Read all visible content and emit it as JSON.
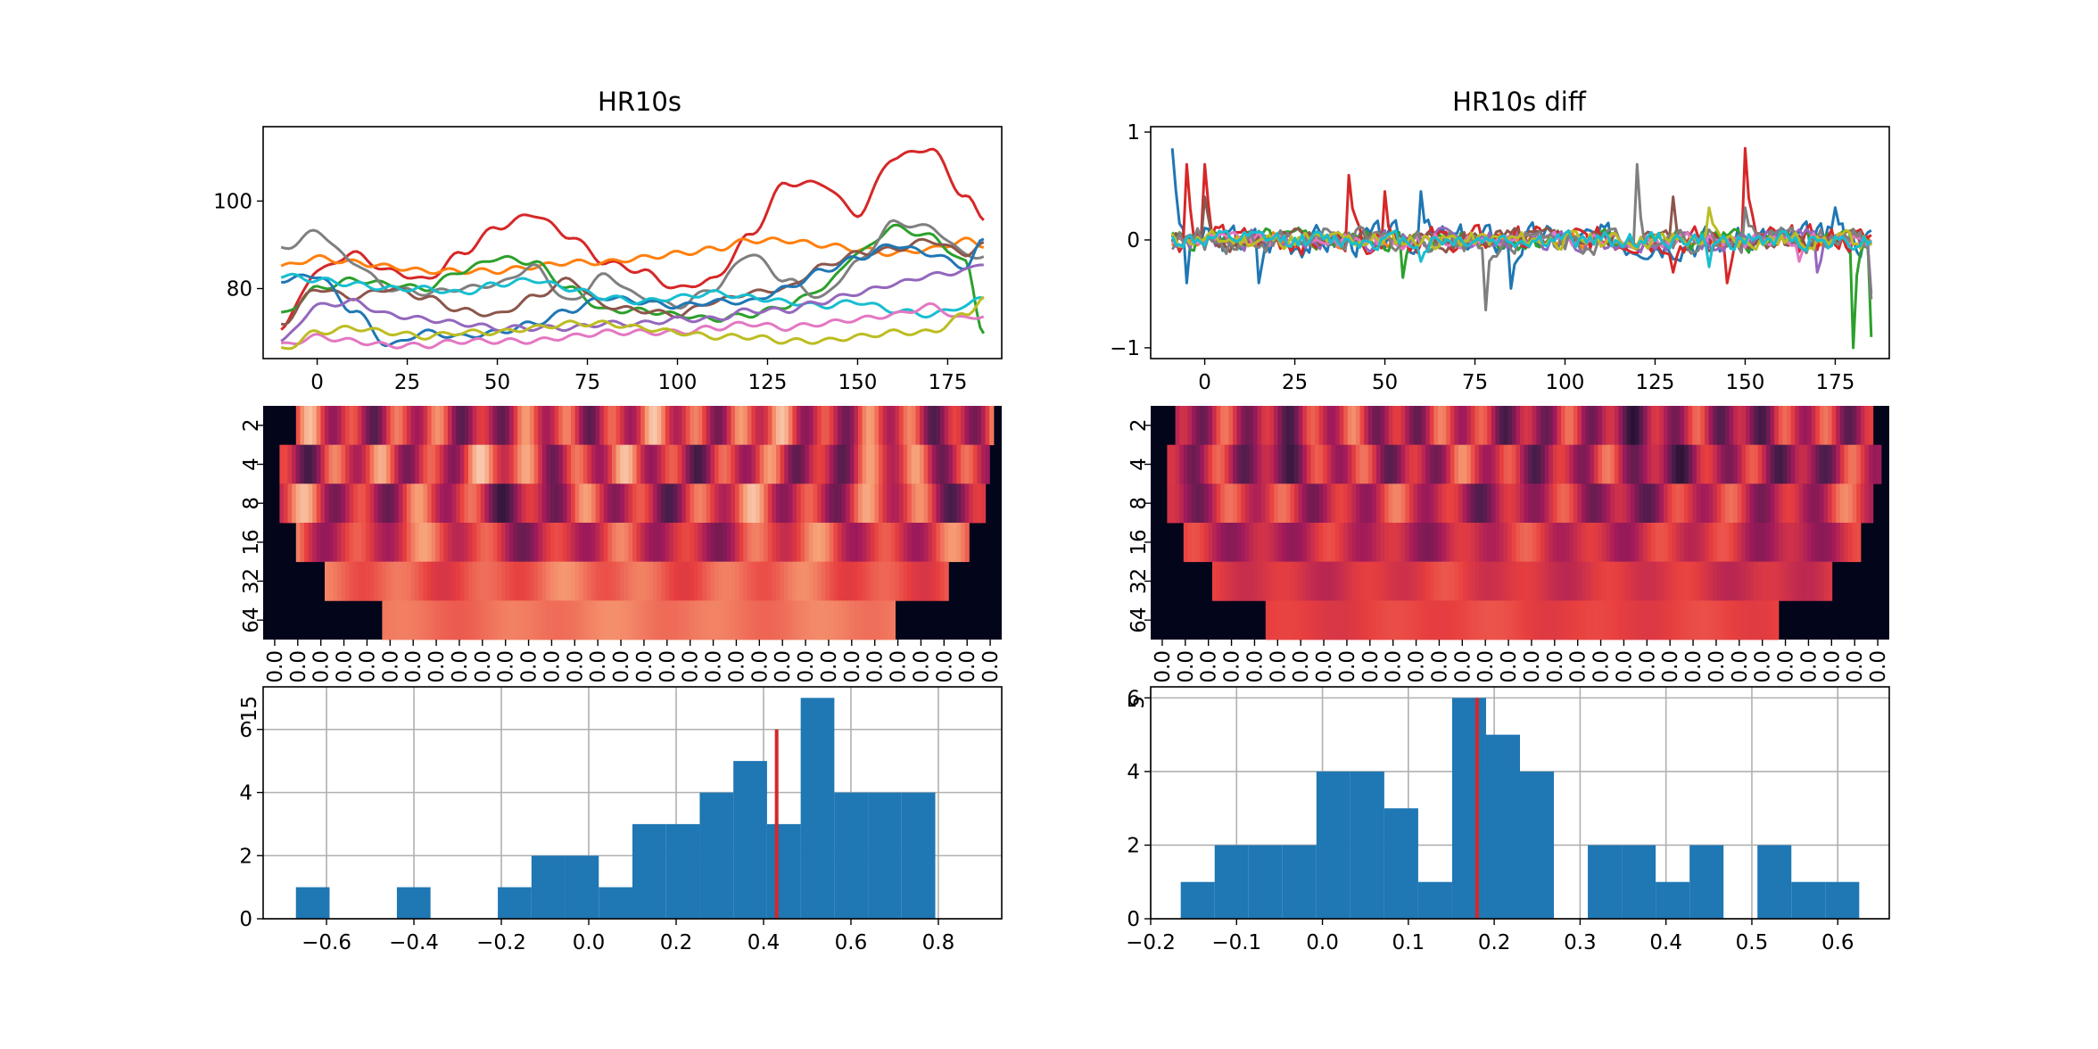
{
  "figure": {
    "background": "#ffffff"
  },
  "chart_data": [
    {
      "id": "hr10s-lines",
      "type": "line",
      "title": "HR10s",
      "xlabel": "",
      "ylabel": "",
      "xlim": [
        -15,
        190
      ],
      "ylim": [
        64,
        117
      ],
      "xticks": [
        0,
        25,
        50,
        75,
        100,
        125,
        150,
        175
      ],
      "yticks": [
        80,
        100
      ],
      "grid": false,
      "note_series": "10 series, colors tab10; values estimated from the plot",
      "series": [
        {
          "color": "#d62728",
          "x": [
            -10,
            0,
            10,
            20,
            30,
            40,
            50,
            60,
            70,
            80,
            90,
            100,
            110,
            120,
            130,
            140,
            150,
            160,
            170,
            180,
            185
          ],
          "y": [
            71,
            84,
            88,
            84,
            82,
            88,
            94,
            97,
            92,
            86,
            84,
            80,
            82,
            92,
            104,
            104,
            97,
            110,
            112,
            101,
            96
          ]
        },
        {
          "color": "#ff7f0e",
          "x": [
            -10,
            0,
            10,
            20,
            30,
            40,
            50,
            60,
            70,
            80,
            90,
            100,
            110,
            120,
            130,
            140,
            150,
            160,
            170,
            180,
            185
          ],
          "y": [
            85,
            87,
            86,
            85,
            84,
            84,
            84,
            85,
            86,
            86,
            87,
            88,
            89,
            91,
            91,
            90,
            89,
            88,
            89,
            91,
            90
          ]
        },
        {
          "color": "#2ca02c",
          "x": [
            -10,
            0,
            10,
            20,
            30,
            40,
            50,
            60,
            70,
            80,
            90,
            100,
            110,
            120,
            130,
            140,
            150,
            160,
            170,
            180,
            185
          ],
          "y": [
            74,
            80,
            82,
            81,
            80,
            84,
            87,
            86,
            80,
            75,
            75,
            74,
            73,
            74,
            76,
            80,
            88,
            94,
            92,
            86,
            70
          ]
        },
        {
          "color": "#7f7f7f",
          "x": [
            -10,
            0,
            10,
            20,
            30,
            40,
            50,
            60,
            70,
            80,
            90,
            100,
            110,
            120,
            130,
            140,
            150,
            160,
            170,
            180,
            185
          ],
          "y": [
            89,
            93,
            86,
            80,
            79,
            80,
            81,
            85,
            77,
            83,
            78,
            76,
            80,
            88,
            82,
            78,
            86,
            95,
            94,
            88,
            87
          ]
        },
        {
          "color": "#8c564b",
          "x": [
            -10,
            0,
            10,
            20,
            30,
            40,
            50,
            60,
            70,
            80,
            90,
            100,
            110,
            120,
            130,
            140,
            150,
            160,
            170,
            180,
            185
          ],
          "y": [
            72,
            80,
            78,
            80,
            78,
            75,
            74,
            78,
            82,
            76,
            75,
            74,
            77,
            79,
            80,
            85,
            88,
            89,
            91,
            88,
            90
          ]
        },
        {
          "color": "#1f77b4",
          "x": [
            -10,
            0,
            10,
            20,
            30,
            40,
            50,
            60,
            70,
            80,
            90,
            100,
            110,
            120,
            130,
            140,
            150,
            160,
            170,
            180,
            185
          ],
          "y": [
            82,
            83,
            75,
            67,
            70,
            69,
            70,
            72,
            75,
            78,
            77,
            76,
            77,
            77,
            80,
            84,
            87,
            90,
            88,
            85,
            91
          ]
        },
        {
          "color": "#17becf",
          "x": [
            -10,
            0,
            10,
            20,
            30,
            40,
            50,
            60,
            70,
            80,
            90,
            100,
            110,
            120,
            130,
            140,
            150,
            160,
            170,
            180,
            185
          ],
          "y": [
            83,
            82,
            81,
            80,
            80,
            79,
            81,
            82,
            80,
            78,
            77,
            78,
            79,
            78,
            77,
            76,
            77,
            75,
            74,
            76,
            78
          ]
        },
        {
          "color": "#9467bd",
          "x": [
            -10,
            0,
            10,
            20,
            30,
            40,
            50,
            60,
            70,
            80,
            90,
            100,
            110,
            120,
            130,
            140,
            150,
            160,
            170,
            180,
            185
          ],
          "y": [
            68,
            76,
            77,
            74,
            73,
            72,
            71,
            71,
            71,
            72,
            72,
            73,
            73,
            75,
            75,
            77,
            79,
            81,
            83,
            84,
            86
          ]
        },
        {
          "color": "#e377c2",
          "x": [
            -10,
            0,
            10,
            20,
            30,
            40,
            50,
            60,
            70,
            80,
            90,
            100,
            110,
            120,
            130,
            140,
            150,
            160,
            170,
            180,
            185
          ],
          "y": [
            67,
            69,
            68,
            67,
            67,
            68,
            68,
            68,
            69,
            70,
            70,
            70,
            71,
            72,
            71,
            72,
            73,
            74,
            76,
            73,
            74
          ]
        },
        {
          "color": "#bcbd22",
          "x": [
            -10,
            0,
            10,
            20,
            30,
            40,
            50,
            60,
            70,
            80,
            90,
            100,
            110,
            120,
            130,
            140,
            150,
            160,
            170,
            180,
            185
          ],
          "y": [
            66,
            70,
            71,
            70,
            69,
            70,
            70,
            71,
            72,
            72,
            71,
            70,
            69,
            69,
            68,
            68,
            69,
            70,
            70,
            74,
            78
          ]
        }
      ]
    },
    {
      "id": "hr10s-diff-lines",
      "type": "line",
      "title": "HR10s diff",
      "xlabel": "",
      "ylabel": "",
      "xlim": [
        -15,
        190
      ],
      "ylim": [
        -1.1,
        1.05
      ],
      "xticks": [
        0,
        25,
        50,
        75,
        100,
        125,
        150,
        175
      ],
      "yticks": [
        -1,
        0,
        1
      ],
      "ytick_labels": [
        "−1",
        "0",
        "1"
      ],
      "grid": false,
      "note_series": "10 noisy series, colors tab10; amplitudes estimated from the plot",
      "series": [
        {
          "color": "#1f77b4",
          "amp": 0.22,
          "peaks": [
            [
              -9,
              0.85
            ],
            [
              -5,
              -0.4
            ],
            [
              15,
              -0.4
            ],
            [
              60,
              0.45
            ],
            [
              85,
              -0.45
            ],
            [
              175,
              0.3
            ]
          ]
        },
        {
          "color": "#ff7f0e",
          "amp": 0.1,
          "peaks": []
        },
        {
          "color": "#2ca02c",
          "amp": 0.15,
          "peaks": [
            [
              55,
              -0.35
            ],
            [
              180,
              -1.0
            ],
            [
              185,
              -0.9
            ]
          ]
        },
        {
          "color": "#d62728",
          "amp": 0.18,
          "peaks": [
            [
              -5,
              0.7
            ],
            [
              0,
              0.7
            ],
            [
              40,
              0.6
            ],
            [
              50,
              0.45
            ],
            [
              150,
              0.85
            ],
            [
              145,
              -0.4
            ],
            [
              130,
              -0.3
            ]
          ]
        },
        {
          "color": "#9467bd",
          "amp": 0.14,
          "peaks": [
            [
              170,
              -0.3
            ],
            [
              185,
              -0.5
            ]
          ]
        },
        {
          "color": "#8c564b",
          "amp": 0.14,
          "peaks": [
            [
              0,
              0.4
            ],
            [
              130,
              0.4
            ]
          ]
        },
        {
          "color": "#e377c2",
          "amp": 0.1,
          "peaks": [
            [
              165,
              -0.2
            ]
          ]
        },
        {
          "color": "#7f7f7f",
          "amp": 0.17,
          "peaks": [
            [
              78,
              -0.65
            ],
            [
              120,
              0.7
            ],
            [
              150,
              0.3
            ],
            [
              185,
              -0.55
            ]
          ]
        },
        {
          "color": "#bcbd22",
          "amp": 0.12,
          "peaks": [
            [
              140,
              0.3
            ]
          ]
        },
        {
          "color": "#17becf",
          "amp": 0.12,
          "peaks": [
            [
              60,
              -0.2
            ],
            [
              140,
              -0.25
            ]
          ]
        }
      ]
    },
    {
      "id": "hr10s-scalogram",
      "type": "heatmap",
      "yticks": [
        "2",
        "4",
        "8",
        "16",
        "32",
        "64"
      ],
      "x_tick_label_text": "0.0",
      "x_tick_count": 32,
      "colormap": "rocket",
      "colors": [
        "#03051a",
        "#4c1d4b",
        "#a11a5b",
        "#e83f3f",
        "#f69c73",
        "#faebdd"
      ],
      "rows": [
        {
          "band": [
            0.04,
            0.985
          ],
          "seed": 3,
          "base": 0.55,
          "wave": 0.38
        },
        {
          "band": [
            0.02,
            0.98
          ],
          "seed": 5,
          "base": 0.55,
          "wave": 0.4
        },
        {
          "band": [
            0.02,
            0.975
          ],
          "seed": 7,
          "base": 0.52,
          "wave": 0.4
        },
        {
          "band": [
            0.04,
            0.95
          ],
          "seed": 11,
          "base": 0.55,
          "wave": 0.3
        },
        {
          "band": [
            0.08,
            0.925
          ],
          "seed": 13,
          "base": 0.67,
          "wave": 0.13
        },
        {
          "band": [
            0.16,
            0.85
          ],
          "seed": 17,
          "base": 0.72,
          "wave": 0.06
        }
      ]
    },
    {
      "id": "hr10s-diff-scalogram",
      "type": "heatmap",
      "yticks": [
        "2",
        "4",
        "8",
        "16",
        "32",
        "64"
      ],
      "x_tick_label_text": "0.0",
      "x_tick_count": 32,
      "colormap": "rocket",
      "colors": [
        "#03051a",
        "#4c1d4b",
        "#a11a5b",
        "#e83f3f",
        "#f69c73",
        "#faebdd"
      ],
      "rows": [
        {
          "band": [
            0.03,
            0.975
          ],
          "seed": 19,
          "base": 0.45,
          "wave": 0.35
        },
        {
          "band": [
            0.02,
            0.985
          ],
          "seed": 23,
          "base": 0.45,
          "wave": 0.35
        },
        {
          "band": [
            0.02,
            0.975
          ],
          "seed": 29,
          "base": 0.48,
          "wave": 0.3
        },
        {
          "band": [
            0.04,
            0.96
          ],
          "seed": 31,
          "base": 0.5,
          "wave": 0.2
        },
        {
          "band": [
            0.08,
            0.92
          ],
          "seed": 37,
          "base": 0.55,
          "wave": 0.1
        },
        {
          "band": [
            0.155,
            0.845
          ],
          "seed": 41,
          "base": 0.6,
          "wave": 0.05
        }
      ]
    },
    {
      "id": "hr10s-histogram",
      "type": "bar",
      "xlim": [
        -0.745,
        0.945
      ],
      "ylim": [
        0,
        7.35
      ],
      "xticks": [
        -0.6,
        -0.4,
        -0.2,
        0.0,
        0.2,
        0.4,
        0.6,
        0.8
      ],
      "xtick_labels": [
        "−0.6",
        "−0.4",
        "−0.2",
        "0.0",
        "0.2",
        "0.4",
        "0.6",
        "0.8"
      ],
      "yticks": [
        0,
        2,
        4,
        6
      ],
      "grid": true,
      "bar_color": "#1f77b4",
      "bin_start": -0.67,
      "bin_width": 0.077,
      "counts": [
        1,
        0,
        0,
        1,
        0,
        0,
        1,
        2,
        2,
        1,
        3,
        3,
        4,
        5,
        3,
        7,
        4,
        4,
        4
      ],
      "marker_line": {
        "x": 0.43,
        "top": 6,
        "color": "#d62728"
      },
      "overlap_top_label": "15"
    },
    {
      "id": "hr10s-diff-histogram",
      "type": "bar",
      "xlim": [
        -0.2,
        0.66
      ],
      "ylim": [
        0,
        6.3
      ],
      "xticks": [
        -0.2,
        -0.1,
        0.0,
        0.1,
        0.2,
        0.3,
        0.4,
        0.5,
        0.6
      ],
      "xtick_labels": [
        "−0.2",
        "−0.1",
        "0.0",
        "0.1",
        "0.2",
        "0.3",
        "0.4",
        "0.5",
        "0.6"
      ],
      "yticks": [
        0,
        2,
        4,
        6
      ],
      "grid": true,
      "bar_color": "#1f77b4",
      "bin_start": -0.165,
      "bin_width": 0.0395,
      "counts": [
        1,
        2,
        2,
        2,
        4,
        4,
        3,
        1,
        6,
        5,
        4,
        0,
        2,
        2,
        1,
        2,
        0,
        2,
        1,
        1
      ],
      "marker_line": {
        "x": 0.18,
        "top": 6,
        "color": "#d62728"
      },
      "overlap_top_label": "5"
    }
  ]
}
